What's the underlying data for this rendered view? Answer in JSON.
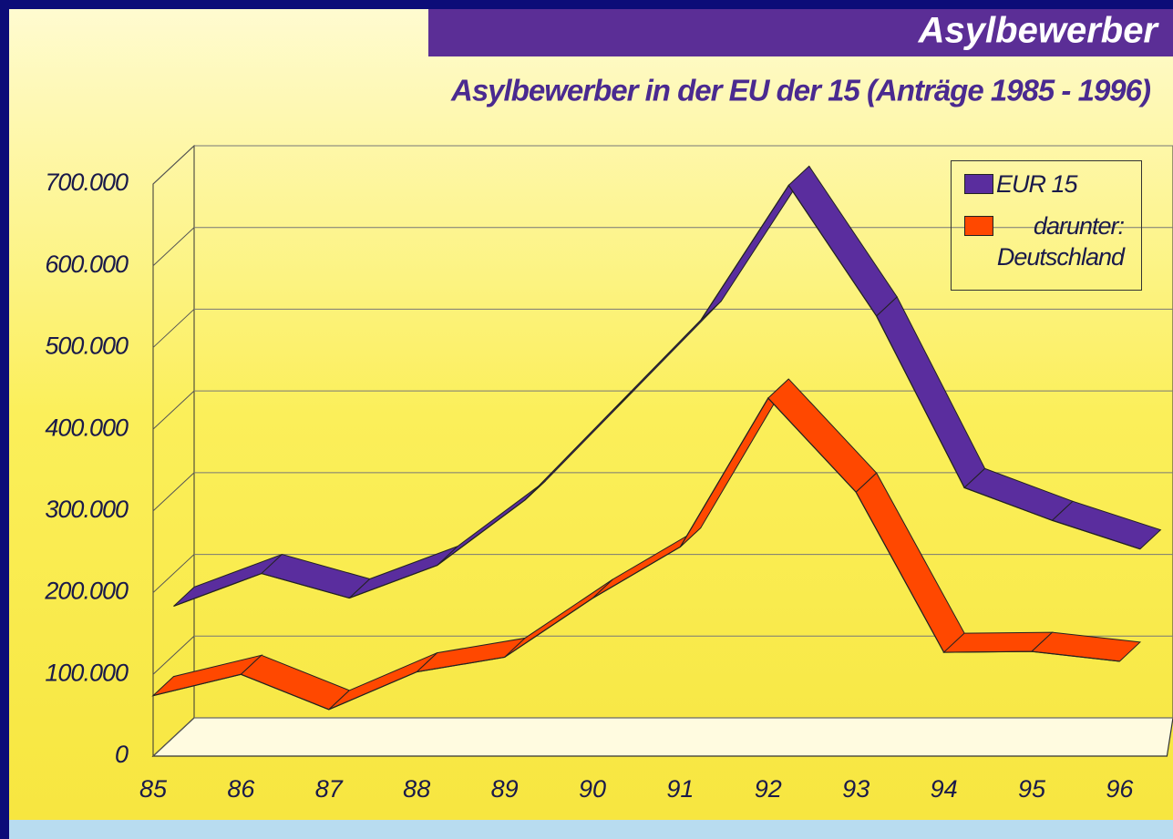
{
  "chart_data": {
    "type": "line3d",
    "header": "Asylbewerber",
    "title": "Asylbewerber  in der EU der 15 (Anträge 1985 - 1996)",
    "categories": [
      "85",
      "86",
      "87",
      "88",
      "89",
      "90",
      "91",
      "92",
      "93",
      "94",
      "95",
      "96"
    ],
    "series": [
      {
        "name": "EUR 15",
        "color": "#5a2d9e",
        "values": [
          160000,
          200000,
          170000,
          210000,
          290000,
          400000,
          510000,
          675000,
          515000,
          305000,
          265000,
          230000
        ]
      },
      {
        "name": "darunter: Deutschland",
        "color": "#ff4800",
        "values": [
          74000,
          100000,
          57000,
          103000,
          121000,
          193000,
          256000,
          438000,
          323000,
          127000,
          128000,
          116000
        ]
      }
    ],
    "ylim": [
      0,
      700000
    ],
    "yticks": [
      0,
      {
        "value": 100000,
        "label": "100.000"
      },
      {
        "value": 200000,
        "label": "200.000"
      },
      {
        "value": 300000,
        "label": "300.000"
      },
      {
        "value": 400000,
        "label": "400.000"
      },
      {
        "value": 500000,
        "label": "500.000"
      },
      {
        "value": 600000,
        "label": "600.000"
      },
      {
        "value": 700000,
        "label": "700.000"
      }
    ],
    "grid": true,
    "legend": "upper right"
  }
}
